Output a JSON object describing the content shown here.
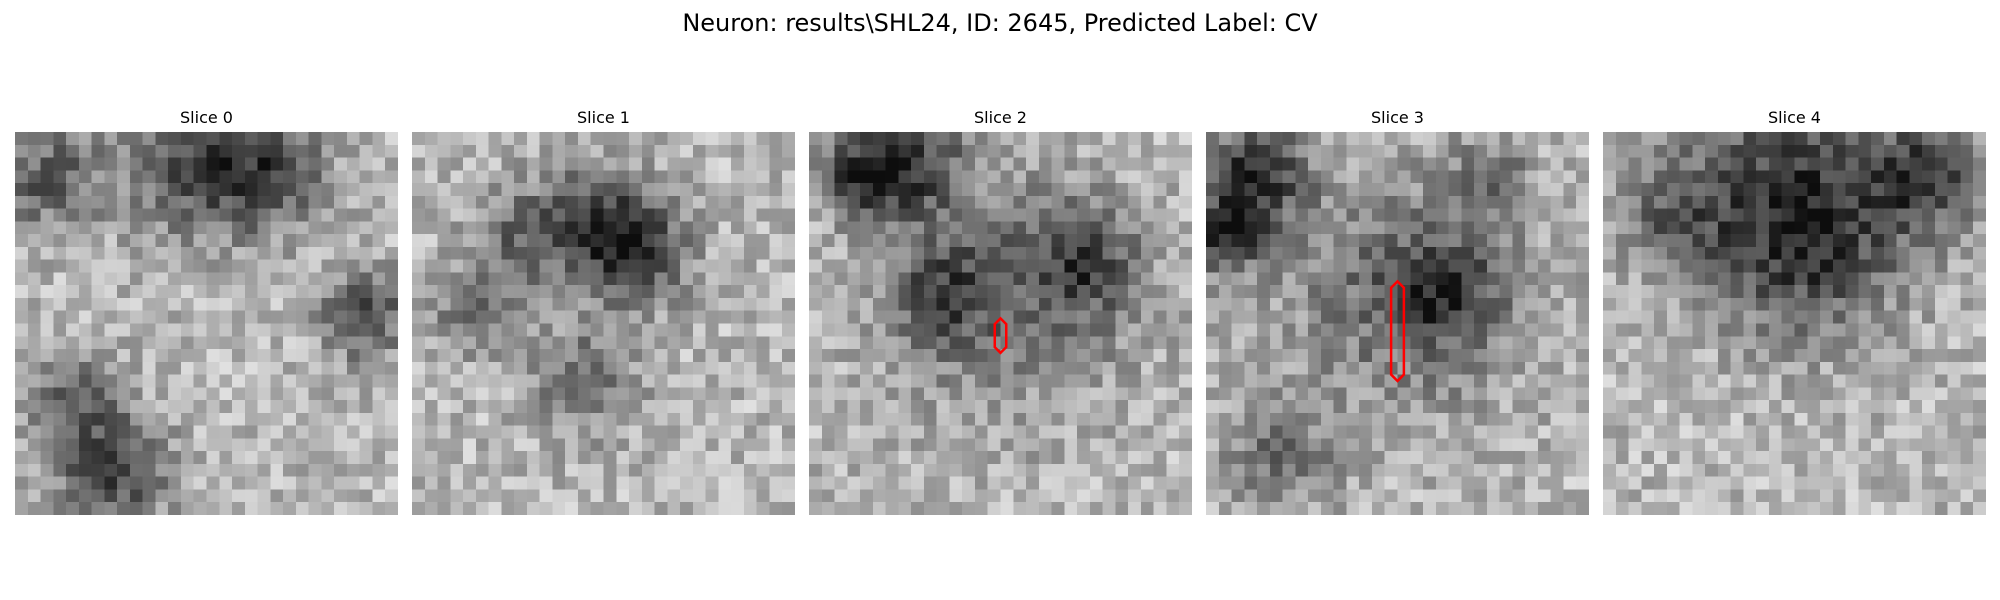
{
  "figure": {
    "title": "Neuron: results\\SHL24, ID: 2645, Predicted Label: CV"
  },
  "panels": [
    {
      "title": "Slice 0",
      "seed": 11,
      "roi": null
    },
    {
      "title": "Slice 1",
      "seed": 23,
      "roi": null
    },
    {
      "title": "Slice 2",
      "seed": 37,
      "roi": {
        "cx": 15,
        "y0": 14.6,
        "y1": 17.3,
        "hw": 0.45
      }
    },
    {
      "title": "Slice 3",
      "seed": 41,
      "roi": {
        "cx": 15,
        "y0": 11.7,
        "y1": 19.5,
        "hw": 0.5
      }
    },
    {
      "title": "Slice 4",
      "seed": 53,
      "roi": null
    }
  ],
  "colors": {
    "roi_outline": "#ff0000",
    "background": "#ffffff"
  },
  "image_grid": 30
}
